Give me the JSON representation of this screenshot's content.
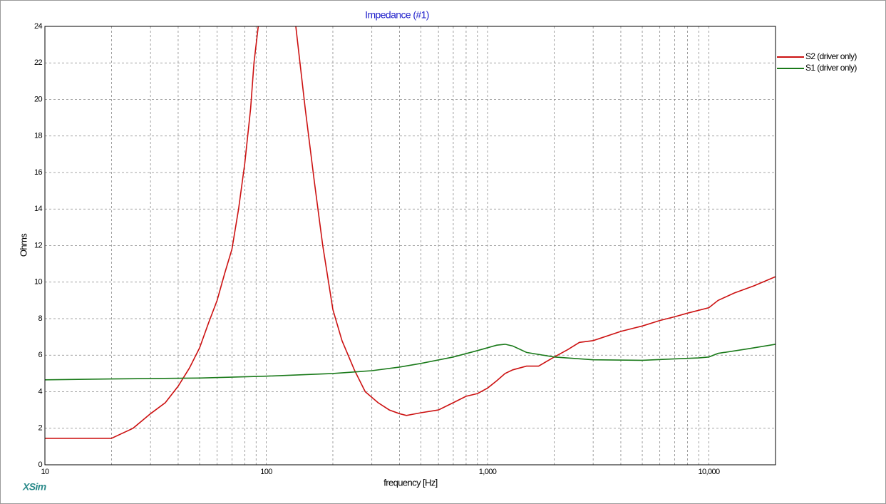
{
  "chart_data": {
    "type": "line",
    "title": "Impedance (#1)",
    "x_label": "frequency [Hz]",
    "y_label": "Ohms",
    "watermark": "XSim",
    "x_log": true,
    "grid": true,
    "legend": "right",
    "xlim": [
      10,
      20000
    ],
    "ylim": [
      0,
      24
    ],
    "xticks": [
      10,
      100,
      {
        "value": 1000,
        "label": "1,000"
      },
      {
        "value": 10000,
        "label": "10,000"
      }
    ],
    "x_minor_ticks": [
      20,
      30,
      40,
      50,
      60,
      70,
      80,
      90,
      200,
      300,
      400,
      500,
      600,
      700,
      800,
      900,
      2000,
      3000,
      4000,
      5000,
      6000,
      7000,
      8000,
      9000
    ],
    "yticks": [
      0,
      2,
      4,
      6,
      8,
      10,
      12,
      14,
      16,
      18,
      20,
      22,
      24
    ],
    "series": [
      {
        "name": "S2 (driver only)",
        "color": "#cc1111",
        "x": [
          10,
          20,
          25,
          30,
          35,
          40,
          45,
          50,
          55,
          60,
          65,
          70,
          75,
          80,
          85,
          88,
          92,
          110,
          136,
          150,
          165,
          180,
          200,
          220,
          250,
          280,
          320,
          360,
          400,
          430,
          500,
          600,
          700,
          800,
          900,
          1000,
          1100,
          1200,
          1300,
          1500,
          1700,
          2000,
          2300,
          2600,
          3000,
          4000,
          5000,
          6000,
          7000,
          8000,
          10000,
          11000,
          13000,
          16000,
          20000
        ],
        "values": [
          1.45,
          1.45,
          2.0,
          2.8,
          3.4,
          4.3,
          5.3,
          6.4,
          7.8,
          9.0,
          10.5,
          11.8,
          14.0,
          16.5,
          19.5,
          22,
          24,
          null,
          24,
          19.5,
          15.5,
          12.0,
          8.5,
          6.8,
          5.2,
          4.0,
          3.4,
          3.0,
          2.8,
          2.7,
          2.85,
          3.0,
          3.4,
          3.75,
          3.9,
          4.2,
          4.6,
          5.0,
          5.2,
          5.4,
          5.4,
          5.9,
          6.3,
          6.7,
          6.8,
          7.3,
          7.6,
          7.9,
          8.1,
          8.3,
          8.6,
          9.0,
          9.4,
          9.8,
          10.3
        ]
      },
      {
        "name": "S1 (driver only)",
        "color": "#1a7a1a",
        "x": [
          10,
          20,
          50,
          100,
          200,
          300,
          400,
          500,
          700,
          900,
          1100,
          1200,
          1300,
          1500,
          2000,
          3000,
          5000,
          7000,
          9000,
          10000,
          11000,
          15000,
          20000
        ],
        "values": [
          4.65,
          4.7,
          4.75,
          4.85,
          5.0,
          5.15,
          5.35,
          5.55,
          5.9,
          6.25,
          6.55,
          6.6,
          6.5,
          6.15,
          5.9,
          5.75,
          5.72,
          5.8,
          5.85,
          5.9,
          6.1,
          6.35,
          6.6
        ]
      }
    ]
  }
}
